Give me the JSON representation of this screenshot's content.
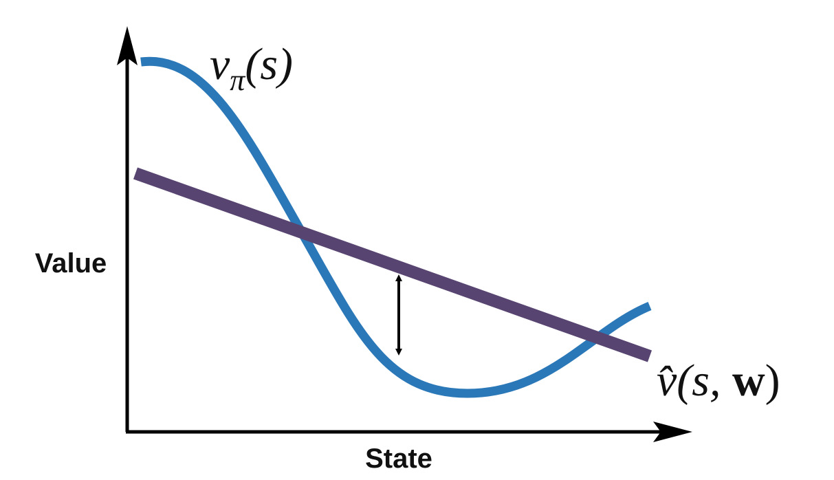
{
  "axes": {
    "y_label": "Value",
    "x_label": "State"
  },
  "true_value": {
    "label": {
      "base": "v",
      "subscript": "π",
      "args": "(s)"
    }
  },
  "approximation": {
    "label": {
      "base": "v̂",
      "args_open": "(s, ",
      "weights": "w",
      "args_close": ")"
    }
  }
}
